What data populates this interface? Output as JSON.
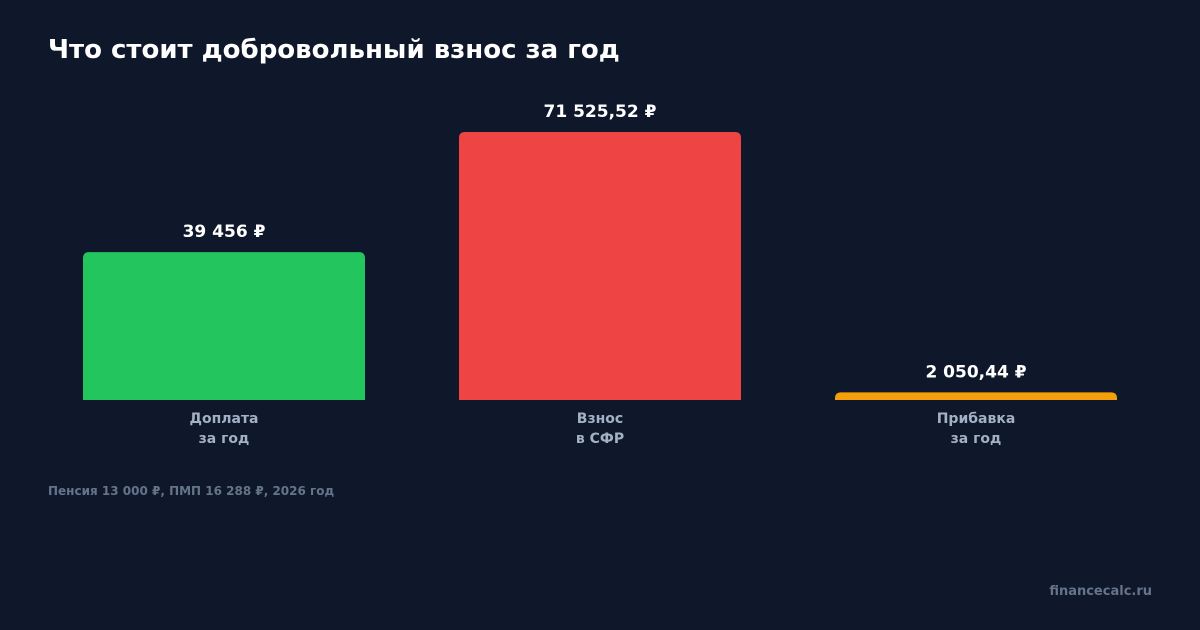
{
  "chart_data": {
    "type": "bar",
    "title": "Что стоит добровольный взнос за год",
    "categories": [
      "Доплата\nза год",
      "Взнос\nв СФР",
      "Прибавка\nза год"
    ],
    "values": [
      39456,
      71525.52,
      2050.44
    ],
    "value_labels": [
      "39 456 ₽",
      "71 525,52 ₽",
      "2 050,44 ₽"
    ],
    "colors": [
      "#22c55e",
      "#ef4444",
      "#f59e0b"
    ],
    "note": "Пенсия 13 000 ₽, ПМП 16 288 ₽, 2026 год",
    "watermark": "financecalc.ru"
  }
}
